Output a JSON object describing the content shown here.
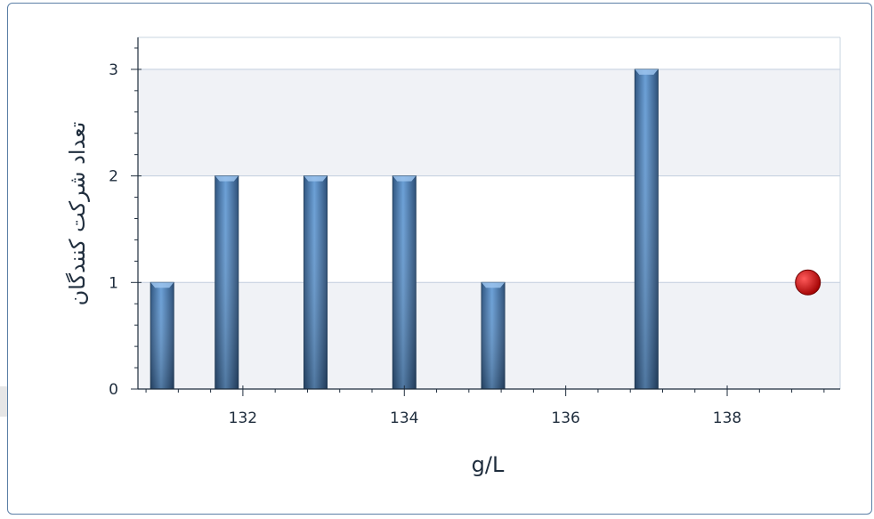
{
  "chart_data": {
    "type": "bar",
    "xlabel": "g/L",
    "ylabel": "تعداد شرکت کنندگان",
    "xlim": [
      130.7,
      139.4
    ],
    "ylim": [
      0,
      3.3
    ],
    "x_ticks": [
      132,
      134,
      136,
      138
    ],
    "y_ticks": [
      0,
      1,
      2,
      3
    ],
    "grid": true,
    "bars": [
      {
        "x": 131,
        "value": 1
      },
      {
        "x": 131.8,
        "value": 2
      },
      {
        "x": 132.9,
        "value": 2
      },
      {
        "x": 134,
        "value": 2
      },
      {
        "x": 135.1,
        "value": 1
      },
      {
        "x": 137,
        "value": 3
      }
    ],
    "marker": {
      "x": 139,
      "value": 1,
      "color": "#c00000"
    },
    "bar_color": "#3f6a99"
  }
}
